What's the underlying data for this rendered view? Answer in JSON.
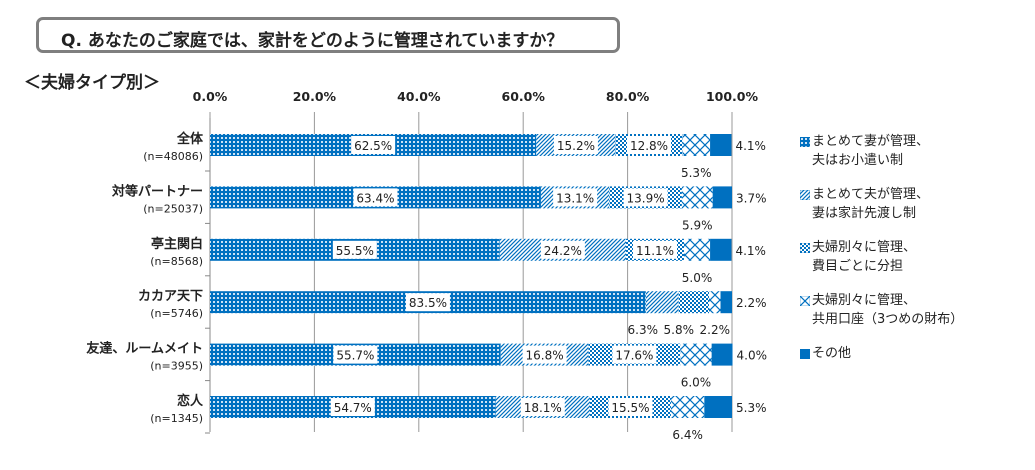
{
  "title": "Q. あなたのご家庭では、家計をどのように管理されていますか？",
  "subtitle": "＜夫婦タイプ別＞",
  "chart_data": {
    "type": "bar",
    "orientation": "horizontal-stacked-100",
    "xlim": [
      0,
      100
    ],
    "x_ticks": [
      "0.0%",
      "20.0%",
      "40.0%",
      "60.0%",
      "80.0%",
      "100.0%"
    ],
    "grid": true,
    "legend_position": "right",
    "categories": [
      {
        "name": "全体",
        "n": "(n=48086)"
      },
      {
        "name": "対等パートナー",
        "n": "(n=25037)"
      },
      {
        "name": "亭主関白",
        "n": "(n=8568)"
      },
      {
        "name": "カカア天下",
        "n": "(n=5746)"
      },
      {
        "name": "友達、ルームメイト",
        "n": "(n=3955)"
      },
      {
        "name": "恋人",
        "n": "(n=1345)"
      }
    ],
    "series": [
      {
        "name": [
          "まとめて妻が管理、",
          "夫はお小遣い制"
        ],
        "pattern": "grid",
        "values": [
          62.5,
          63.4,
          55.5,
          83.5,
          55.7,
          54.7
        ]
      },
      {
        "name": [
          "まとめて夫が管理、",
          "妻は家計先渡し制"
        ],
        "pattern": "diagonal",
        "values": [
          15.2,
          13.1,
          24.2,
          6.3,
          16.8,
          18.1
        ]
      },
      {
        "name": [
          "夫婦別々に管理、",
          "費目ごとに分担"
        ],
        "pattern": "checker",
        "values": [
          12.8,
          13.9,
          11.1,
          5.8,
          17.6,
          15.5
        ]
      },
      {
        "name": [
          "夫婦別々に管理、",
          "共用口座（3つめの財布）"
        ],
        "pattern": "crosshatch",
        "values": [
          5.3,
          5.9,
          5.0,
          2.2,
          6.0,
          6.4
        ]
      },
      {
        "name": [
          "その他"
        ],
        "pattern": "solid",
        "values": [
          4.1,
          3.7,
          4.1,
          2.2,
          4.0,
          5.3
        ]
      }
    ],
    "color": "#0070c0"
  }
}
